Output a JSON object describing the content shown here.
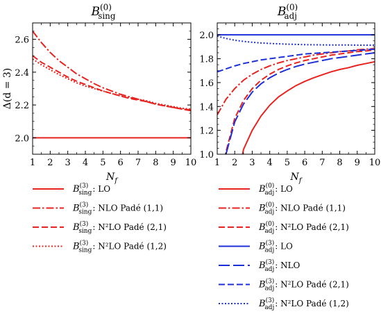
{
  "chart_data": [
    {
      "type": "line",
      "title": "B(0) sing",
      "title_parts": {
        "main": "B",
        "sup": "(0)",
        "sub": "sing"
      },
      "xlabel": "N_f",
      "ylabel": "Δ(d = 3)",
      "xlim": [
        1,
        10
      ],
      "ylim": [
        1.9,
        2.7
      ],
      "xticks": [
        1,
        2,
        3,
        4,
        5,
        6,
        7,
        8,
        9,
        10
      ],
      "yticks": [
        2.0,
        2.2,
        2.4,
        2.6
      ],
      "ytick_labels": [
        "2.0",
        "2.2",
        "2.4",
        "2.6"
      ],
      "grid": false,
      "legend_position": "below",
      "x": [
        1,
        1.5,
        2,
        2.5,
        3,
        3.5,
        4,
        4.5,
        5,
        5.5,
        6,
        6.5,
        7,
        7.5,
        8,
        8.5,
        9,
        9.5,
        10
      ],
      "series": [
        {
          "name": "B(3) sing : LO",
          "label_parts": {
            "sup": "(3)",
            "sub": "sing",
            "text": ": LO"
          },
          "color": "#e8231f",
          "dash": "solid",
          "values": [
            2.0,
            2.0,
            2.0,
            2.0,
            2.0,
            2.0,
            2.0,
            2.0,
            2.0,
            2.0,
            2.0,
            2.0,
            2.0,
            2.0,
            2.0,
            2.0,
            2.0,
            2.0,
            2.0
          ]
        },
        {
          "name": "B(3) sing : NLO Padé (1,1)",
          "label_parts": {
            "sup": "(3)",
            "sub": "sing",
            "text": ": NLO Padé (1,1)"
          },
          "color": "#e8231f",
          "dash": "dashdot",
          "values": [
            2.65,
            2.58,
            2.52,
            2.47,
            2.43,
            2.39,
            2.36,
            2.33,
            2.305,
            2.285,
            2.265,
            2.25,
            2.235,
            2.22,
            2.205,
            2.195,
            2.185,
            2.175,
            2.165
          ]
        },
        {
          "name": "B(3) sing : N2LO Padé (2,1)",
          "label_parts": {
            "sup": "(3)",
            "sub": "sing",
            "text": ": N²LO Padé (2,1)"
          },
          "color": "#e8231f",
          "dash": "dashed",
          "values": [
            2.5,
            2.46,
            2.43,
            2.4,
            2.37,
            2.345,
            2.325,
            2.305,
            2.285,
            2.27,
            2.255,
            2.24,
            2.23,
            2.22,
            2.205,
            2.195,
            2.185,
            2.175,
            2.17
          ]
        },
        {
          "name": "B(3) sing : N2LO Padé (1,2)",
          "label_parts": {
            "sup": "(3)",
            "sub": "sing",
            "text": ": N²LO Padé (1,2)"
          },
          "color": "#e8231f",
          "dash": "dotted",
          "values": [
            2.48,
            2.445,
            2.415,
            2.385,
            2.36,
            2.335,
            2.315,
            2.3,
            2.285,
            2.27,
            2.255,
            2.245,
            2.235,
            2.225,
            2.21,
            2.2,
            2.19,
            2.18,
            2.175
          ]
        }
      ]
    },
    {
      "type": "line",
      "title": "B(0) adj",
      "title_parts": {
        "main": "B",
        "sup": "(0)",
        "sub": "adj"
      },
      "xlabel": "N_f",
      "ylabel": "",
      "xlim": [
        1,
        10
      ],
      "ylim": [
        1.0,
        2.1
      ],
      "xticks": [
        1,
        2,
        3,
        4,
        5,
        6,
        7,
        8,
        9,
        10
      ],
      "yticks": [
        1.0,
        1.2,
        1.4,
        1.6,
        1.8,
        2.0
      ],
      "ytick_labels": [
        "1.0",
        "1.2",
        "1.4",
        "1.6",
        "1.8",
        "2.0"
      ],
      "grid": false,
      "legend_position": "below",
      "x": [
        1,
        1.5,
        2,
        2.5,
        3,
        3.5,
        4,
        4.5,
        5,
        5.5,
        6,
        6.5,
        7,
        7.5,
        8,
        8.5,
        9,
        9.5,
        10
      ],
      "series": [
        {
          "name": "B(0) adj : LO",
          "label_parts": {
            "sup": "(0)",
            "sub": "adj",
            "text": ": LO"
          },
          "color": "#e8231f",
          "dash": "solid",
          "values": [
            null,
            null,
            null,
            1.04,
            1.2,
            1.32,
            1.41,
            1.48,
            1.53,
            1.575,
            1.61,
            1.64,
            1.665,
            1.69,
            1.71,
            1.725,
            1.745,
            1.76,
            1.775
          ]
        },
        {
          "name": "B(0) adj : NLO Padé (1,1)",
          "label_parts": {
            "sup": "(0)",
            "sub": "adj",
            "text": ": NLO Padé (1,1)"
          },
          "color": "#e8231f",
          "dash": "dashdot",
          "values": [
            1.33,
            1.46,
            1.55,
            1.62,
            1.67,
            1.71,
            1.74,
            1.765,
            1.785,
            1.8,
            1.815,
            1.83,
            1.84,
            1.85,
            1.86,
            1.865,
            1.875,
            1.88,
            1.885
          ]
        },
        {
          "name": "B(0) adj : N2LO Padé (2,1)",
          "label_parts": {
            "sup": "(0)",
            "sub": "adj",
            "text": ": N²LO Padé (2,1)"
          },
          "color": "#e8231f",
          "dash": "dashed",
          "values": [
            null,
            1.02,
            1.3,
            1.45,
            1.55,
            1.62,
            1.67,
            1.71,
            1.74,
            1.765,
            1.785,
            1.8,
            1.815,
            1.83,
            1.84,
            1.85,
            1.86,
            1.865,
            1.875
          ]
        },
        {
          "name": "B(3) adj : LO",
          "label_parts": {
            "sup": "(3)",
            "sub": "adj",
            "text": ": LO"
          },
          "color": "#1c2fd9",
          "dash": "solid",
          "values": [
            2.0,
            2.0,
            2.0,
            2.0,
            2.0,
            2.0,
            2.0,
            2.0,
            2.0,
            2.0,
            2.0,
            2.0,
            2.0,
            2.0,
            2.0,
            2.0,
            2.0,
            2.0,
            2.0
          ]
        },
        {
          "name": "B(3) adj : NLO",
          "label_parts": {
            "sup": "(3)",
            "sub": "adj",
            "text": ": NLO"
          },
          "color": "#1c2fd9",
          "dash": "longdash",
          "values": [
            null,
            1.0,
            1.27,
            1.42,
            1.52,
            1.59,
            1.64,
            1.68,
            1.71,
            1.735,
            1.755,
            1.77,
            1.785,
            1.8,
            1.81,
            1.82,
            1.83,
            1.84,
            1.85
          ]
        },
        {
          "name": "B(3) adj : N2LO Padé (2,1)",
          "label_parts": {
            "sup": "(3)",
            "sub": "adj",
            "text": ": N²LO Padé (2,1)"
          },
          "color": "#1c2fd9",
          "dash": "dashed",
          "values": [
            1.69,
            1.715,
            1.74,
            1.76,
            1.775,
            1.79,
            1.8,
            1.81,
            1.82,
            1.83,
            1.84,
            1.845,
            1.85,
            1.855,
            1.86,
            1.865,
            1.87,
            1.875,
            1.88
          ]
        },
        {
          "name": "B(3) adj : N2LO Padé (1,2)",
          "label_parts": {
            "sup": "(3)",
            "sub": "adj",
            "text": ": N²LO Padé (1,2)"
          },
          "color": "#1c2fd9",
          "dash": "dotted",
          "values": [
            1.99,
            1.97,
            1.955,
            1.945,
            1.938,
            1.932,
            1.928,
            1.925,
            1.922,
            1.92,
            1.918,
            1.917,
            1.916,
            1.915,
            1.915,
            1.915,
            1.914,
            1.914,
            1.914
          ]
        }
      ]
    }
  ]
}
